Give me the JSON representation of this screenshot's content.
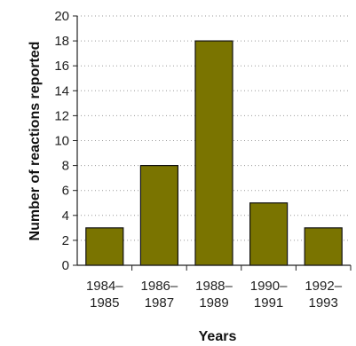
{
  "chart_data": {
    "type": "bar",
    "categories": [
      [
        "1984–",
        "1985"
      ],
      [
        "1986–",
        "1987"
      ],
      [
        "1988–",
        "1989"
      ],
      [
        "1990–",
        "1991"
      ],
      [
        "1992–",
        "1993"
      ]
    ],
    "values": [
      3,
      8,
      18,
      5,
      3
    ],
    "xlabel": "Years",
    "ylabel": "Number of reactions reported",
    "ylim": [
      0,
      20
    ],
    "yticks": [
      0,
      2,
      4,
      6,
      8,
      10,
      12,
      14,
      16,
      18,
      20
    ],
    "grid": "dotted horizontal",
    "bar_color": "#7a7400"
  }
}
